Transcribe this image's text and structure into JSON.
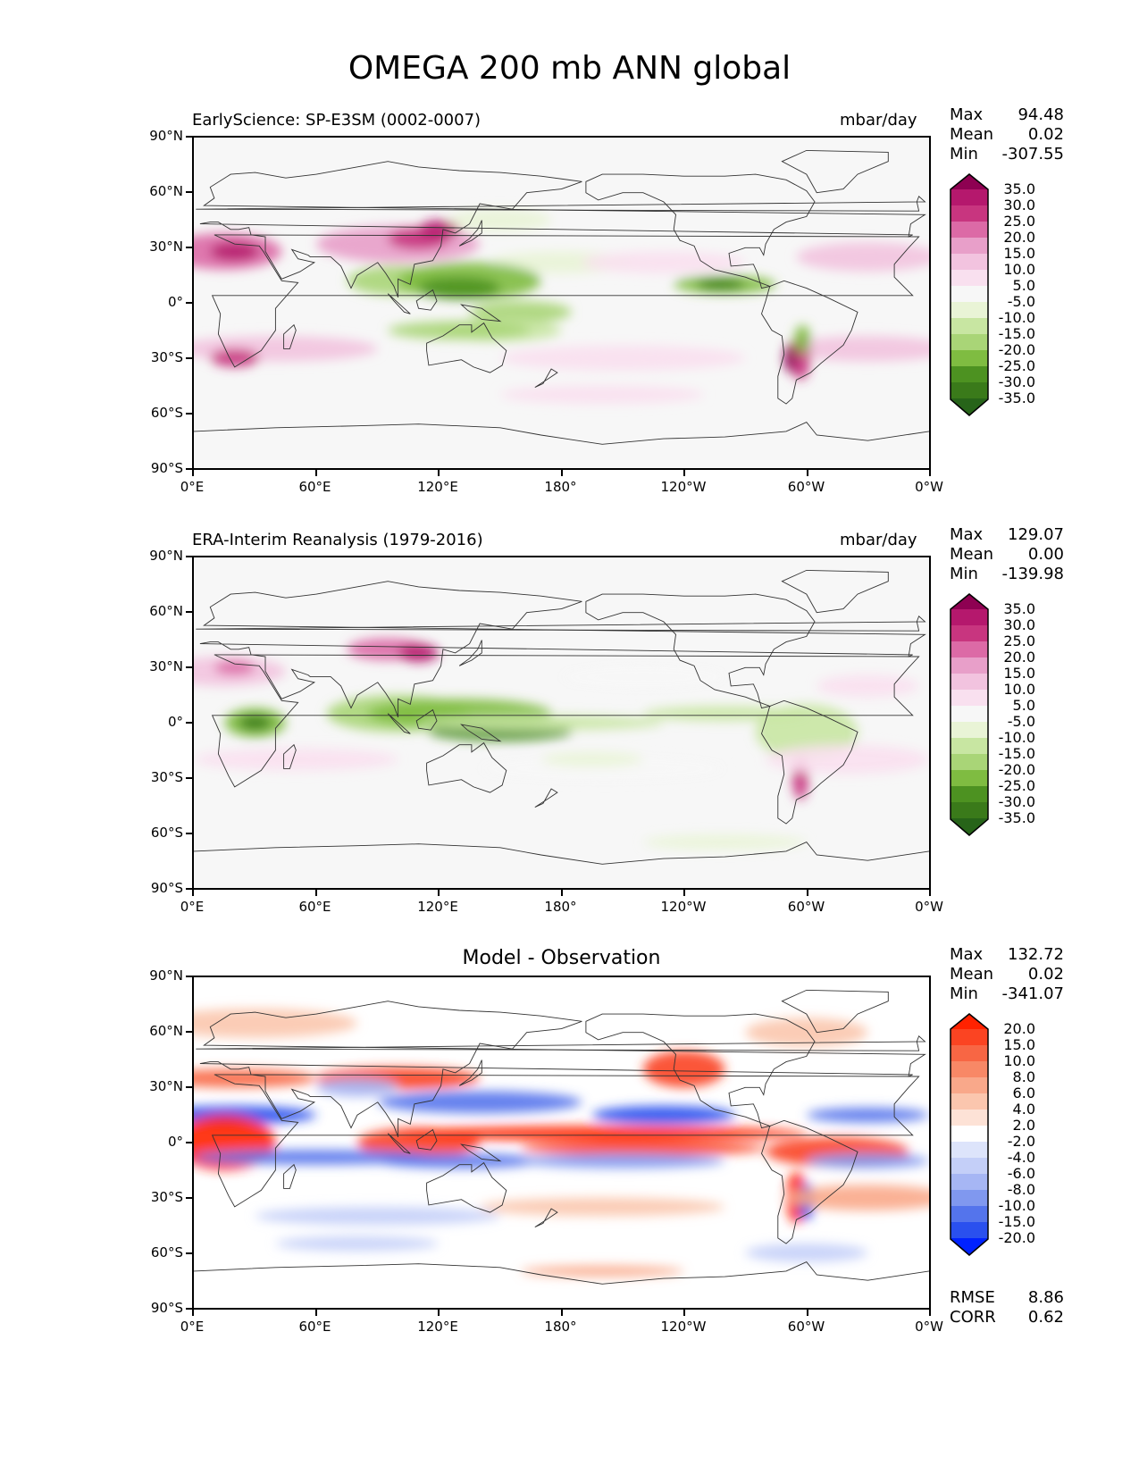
{
  "figure_title": "OMEGA 200 mb ANN global",
  "chart_data": [
    {
      "type": "heatmap",
      "panel": "test",
      "title_left": "EarlyScience: SP-E3SM (0002-0007)",
      "units": "mbar/day",
      "stats": {
        "max_label": "Max",
        "max": "94.48",
        "mean_label": "Mean",
        "mean": "0.02",
        "min_label": "Min",
        "min": "-307.55"
      },
      "colorbar_levels": [
        "35.0",
        "30.0",
        "25.0",
        "20.0",
        "15.0",
        "10.0",
        "5.0",
        "-5.0",
        "-10.0",
        "-15.0",
        "-20.0",
        "-25.0",
        "-30.0",
        "-35.0"
      ],
      "colorbar_colors": [
        "#8e0152",
        "#b5186d",
        "#c8357f",
        "#dc6aa6",
        "#e89fc9",
        "#f2c3df",
        "#f9e0ef",
        "#f7f7f7",
        "#e9f4d6",
        "#c8e6a2",
        "#a9d577",
        "#7fbc41",
        "#4d9221",
        "#3a7a1a",
        "#276419"
      ],
      "x_ticks": [
        "0°E",
        "60°E",
        "120°E",
        "180°",
        "120°W",
        "60°W",
        "0°W"
      ],
      "y_ticks": [
        "90°N",
        "60°N",
        "30°N",
        "0°",
        "30°S",
        "60°S",
        "90°S"
      ]
    },
    {
      "type": "heatmap",
      "panel": "reference",
      "title_left": "ERA-Interim Reanalysis (1979-2016)",
      "units": "mbar/day",
      "stats": {
        "max_label": "Max",
        "max": "129.07",
        "mean_label": "Mean",
        "mean": "0.00",
        "min_label": "Min",
        "min": "-139.98"
      },
      "colorbar_levels": [
        "35.0",
        "30.0",
        "25.0",
        "20.0",
        "15.0",
        "10.0",
        "5.0",
        "-5.0",
        "-10.0",
        "-15.0",
        "-20.0",
        "-25.0",
        "-30.0",
        "-35.0"
      ],
      "colorbar_colors": [
        "#8e0152",
        "#b5186d",
        "#c8357f",
        "#dc6aa6",
        "#e89fc9",
        "#f2c3df",
        "#f9e0ef",
        "#f7f7f7",
        "#e9f4d6",
        "#c8e6a2",
        "#a9d577",
        "#7fbc41",
        "#4d9221",
        "#3a7a1a",
        "#276419"
      ],
      "x_ticks": [
        "0°E",
        "60°E",
        "120°E",
        "180°",
        "120°W",
        "60°W",
        "0°W"
      ],
      "y_ticks": [
        "90°N",
        "60°N",
        "30°N",
        "0°",
        "30°S",
        "60°S",
        "90°S"
      ]
    },
    {
      "type": "heatmap",
      "panel": "difference",
      "title_center": "Model - Observation",
      "stats": {
        "max_label": "Max",
        "max": "132.72",
        "mean_label": "Mean",
        "mean": "0.02",
        "min_label": "Min",
        "min": "-341.07"
      },
      "extra_stats": {
        "rmse_label": "RMSE",
        "rmse": "8.86",
        "corr_label": "CORR",
        "corr": "0.62"
      },
      "colorbar_levels": [
        "20.0",
        "15.0",
        "10.0",
        "8.0",
        "6.0",
        "4.0",
        "2.0",
        "-2.0",
        "-4.0",
        "-6.0",
        "-8.0",
        "-10.0",
        "-15.0",
        "-20.0"
      ],
      "colorbar_colors": [
        "#ff2200",
        "#fb4422",
        "#f86644",
        "#f88866",
        "#f9a88a",
        "#fbc6ae",
        "#fde2d6",
        "#ffffff",
        "#dde4fb",
        "#c4cff8",
        "#a6b6f4",
        "#8098ef",
        "#5474ec",
        "#2a50ee",
        "#0022ff"
      ],
      "x_ticks": [
        "0°E",
        "60°E",
        "120°E",
        "180°",
        "120°W",
        "60°W",
        "0°W"
      ],
      "y_ticks": [
        "90°N",
        "60°N",
        "30°N",
        "0°",
        "30°S",
        "60°S",
        "90°S"
      ]
    }
  ]
}
